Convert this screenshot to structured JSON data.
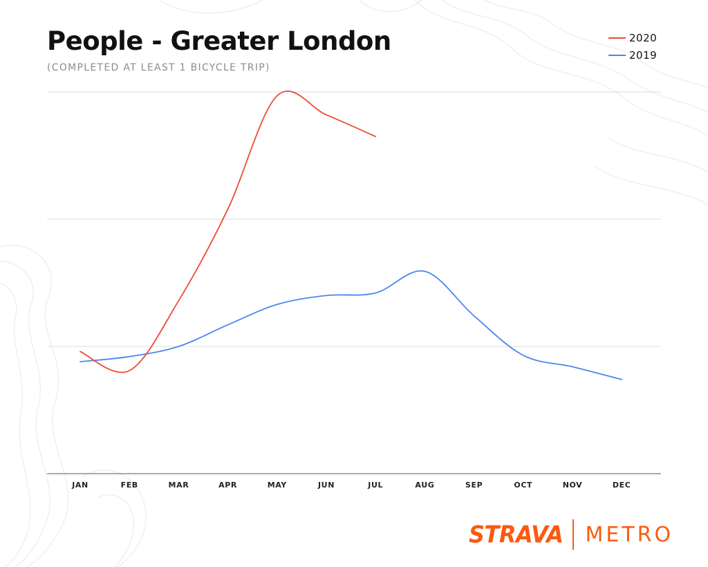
{
  "header": {
    "title": "People - Greater London",
    "subtitle": "(COMPLETED AT LEAST 1 BICYCLE TRIP)"
  },
  "legend": [
    {
      "label": "2020",
      "color": "#ef4a36"
    },
    {
      "label": "2019",
      "color": "#4a86ee"
    }
  ],
  "branding": {
    "brand": "STRAVA",
    "product": "METRO",
    "color": "#fc5a10"
  },
  "chart_data": {
    "type": "line",
    "title": "People - Greater London",
    "subtitle": "(COMPLETED AT LEAST 1 BICYCLE TRIP)",
    "categories": [
      "JAN",
      "FEB",
      "MAR",
      "APR",
      "MAY",
      "JUN",
      "JUL",
      "AUG",
      "SEP",
      "OCT",
      "NOV",
      "DEC"
    ],
    "ylim": [
      0,
      3
    ],
    "grid": true,
    "y_tick_labels_shown": false,
    "legend_position": "top-right",
    "series": [
      {
        "name": "2020",
        "color": "#ef4a36",
        "values": [
          0.96,
          0.81,
          1.36,
          2.08,
          2.97,
          2.82,
          2.65,
          null,
          null,
          null,
          null,
          null
        ]
      },
      {
        "name": "2019",
        "color": "#4a86ee",
        "values": [
          0.88,
          0.92,
          1.0,
          1.17,
          1.33,
          1.4,
          1.42,
          1.59,
          1.24,
          0.93,
          0.84,
          0.74
        ]
      }
    ],
    "xlabel": "",
    "ylabel": ""
  }
}
